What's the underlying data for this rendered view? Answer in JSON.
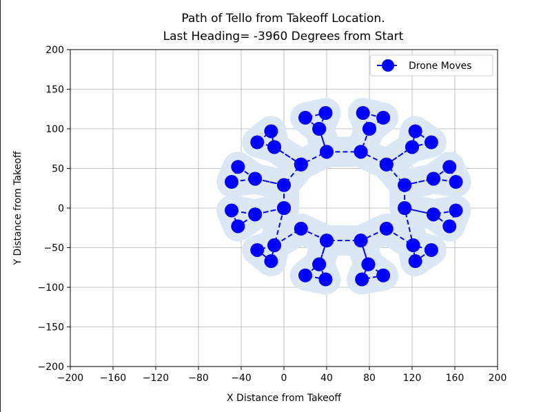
{
  "chart_data": {
    "type": "scatter",
    "title_lines": [
      "Path of Tello from Takeoff Location.",
      "Last Heading= -3960 Degrees from Start"
    ],
    "xlabel": "X Distance from Takeoff",
    "ylabel": "Y Distance from Takeoff",
    "xlim": [
      -200,
      200
    ],
    "ylim": [
      -200,
      200
    ],
    "xticks": [
      -200,
      -160,
      -120,
      -80,
      -40,
      0,
      40,
      80,
      120,
      160,
      200
    ],
    "yticks": [
      -200,
      -150,
      -100,
      -50,
      0,
      50,
      100,
      150,
      200
    ],
    "xtick_labels": [
      "−200",
      "−160",
      "−120",
      "−80",
      "−40",
      "0",
      "40",
      "80",
      "120",
      "160",
      "200"
    ],
    "ytick_labels": [
      "−200",
      "−150",
      "−100",
      "−50",
      "0",
      "50",
      "100",
      "150",
      "200"
    ],
    "grid": true,
    "legend_placement": "top-right",
    "series": [
      {
        "name": "Drone Moves",
        "color": "#0000ff",
        "shade_color": "#dbe7f4",
        "line_style": "dashed",
        "points": [
          [
            0,
            0
          ],
          [
            -9,
            -47
          ],
          [
            -12,
            -67
          ],
          [
            -25,
            -53
          ],
          [
            -9,
            -47
          ],
          [
            16,
            -26
          ],
          [
            40,
            -41
          ],
          [
            33,
            -71
          ],
          [
            39,
            -90
          ],
          [
            20,
            -85
          ],
          [
            33,
            -71
          ],
          [
            40,
            -41
          ],
          [
            72,
            -41
          ],
          [
            79,
            -71
          ],
          [
            73,
            -90
          ],
          [
            93,
            -85
          ],
          [
            79,
            -71
          ],
          [
            72,
            -41
          ],
          [
            96,
            -26
          ],
          [
            121,
            -47
          ],
          [
            123,
            -67
          ],
          [
            138,
            -53
          ],
          [
            121,
            -47
          ],
          [
            113,
            0
          ],
          [
            140,
            -8
          ],
          [
            155,
            -23
          ],
          [
            161,
            -3
          ],
          [
            140,
            -8
          ],
          [
            113,
            0
          ],
          [
            113,
            29
          ],
          [
            140,
            37
          ],
          [
            161,
            33
          ],
          [
            155,
            52
          ],
          [
            140,
            37
          ],
          [
            113,
            29
          ],
          [
            96,
            55
          ],
          [
            120,
            77
          ],
          [
            138,
            83
          ],
          [
            123,
            97
          ],
          [
            120,
            77
          ],
          [
            96,
            55
          ],
          [
            72,
            71
          ],
          [
            80,
            100
          ],
          [
            93,
            114
          ],
          [
            74,
            120
          ],
          [
            80,
            100
          ],
          [
            72,
            71
          ],
          [
            40,
            71
          ],
          [
            33,
            100
          ],
          [
            39,
            120
          ],
          [
            20,
            114
          ],
          [
            33,
            100
          ],
          [
            40,
            71
          ],
          [
            16,
            55
          ],
          [
            -9,
            77
          ],
          [
            -25,
            83
          ],
          [
            -12,
            97
          ],
          [
            -9,
            77
          ],
          [
            16,
            55
          ],
          [
            0,
            29
          ],
          [
            -27,
            37
          ],
          [
            -43,
            52
          ],
          [
            -49,
            33
          ],
          [
            -27,
            37
          ],
          [
            0,
            29
          ],
          [
            0,
            0
          ],
          [
            -27,
            -8
          ],
          [
            -49,
            -3
          ],
          [
            -43,
            -23
          ],
          [
            -27,
            -8
          ],
          [
            0,
            0
          ]
        ]
      }
    ]
  }
}
